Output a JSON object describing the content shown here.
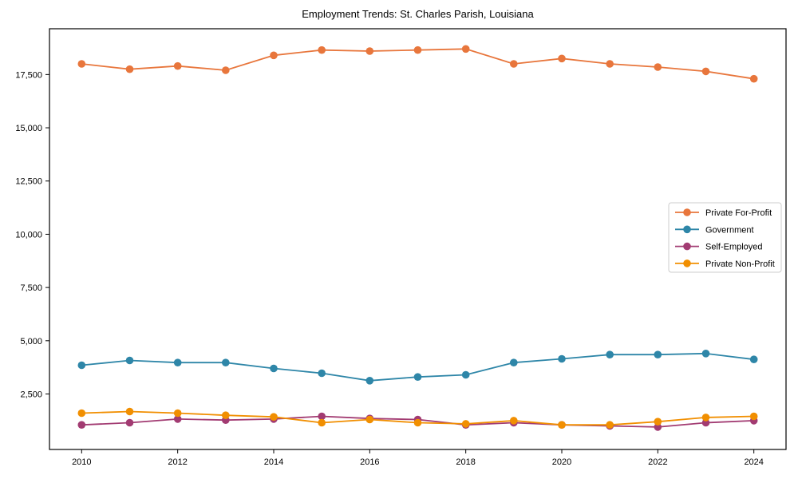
{
  "chart": {
    "background": "#ffffff",
    "spine_color": "#000000",
    "legend_border_color": "#cccccc",
    "legend_background": "#ffffff"
  },
  "chart_data": {
    "type": "line",
    "title": "Employment Trends: St. Charles Parish, Louisiana",
    "xlabel": "",
    "ylabel": "",
    "x": [
      2010,
      2011,
      2012,
      2013,
      2014,
      2015,
      2016,
      2017,
      2018,
      2019,
      2020,
      2021,
      2022,
      2023,
      2024
    ],
    "x_tick_years": [
      2010,
      2012,
      2014,
      2016,
      2018,
      2020,
      2022,
      2024
    ],
    "x_tick_labels": [
      "2010",
      "2012",
      "2014",
      "2016",
      "2018",
      "2020",
      "2022",
      "2024"
    ],
    "y_ticks": [
      2500,
      5000,
      7500,
      10000,
      12500,
      15000,
      17500
    ],
    "y_tick_labels": [
      "2,500",
      "5,000",
      "7,500",
      "10,000",
      "12,500",
      "15,000",
      "17,500"
    ],
    "xlim": [
      2009.33,
      2024.67
    ],
    "ylim": [
      -105,
      19650
    ],
    "grid": false,
    "legend_position": "center-right",
    "marker": "circle",
    "series": [
      {
        "name": "Private For-Profit",
        "color": "#E8763C",
        "values": [
          18000,
          17750,
          17900,
          17700,
          18400,
          18650,
          18600,
          18650,
          18700,
          18000,
          18250,
          18000,
          17850,
          17650,
          17300
        ]
      },
      {
        "name": "Government",
        "color": "#2E86A8",
        "values": [
          3850,
          4075,
          3975,
          3975,
          3700,
          3475,
          3125,
          3300,
          3400,
          3975,
          4150,
          4350,
          4350,
          4400,
          4125
        ]
      },
      {
        "name": "Self-Employed",
        "color": "#A23B72",
        "values": [
          1050,
          1150,
          1325,
          1275,
          1325,
          1450,
          1350,
          1300,
          1050,
          1150,
          1050,
          1000,
          950,
          1150,
          1250
        ]
      },
      {
        "name": "Private Non-Profit",
        "color": "#F18F01",
        "values": [
          1600,
          1675,
          1600,
          1500,
          1425,
          1150,
          1300,
          1150,
          1100,
          1250,
          1050,
          1050,
          1200,
          1400,
          1450
        ]
      }
    ]
  }
}
